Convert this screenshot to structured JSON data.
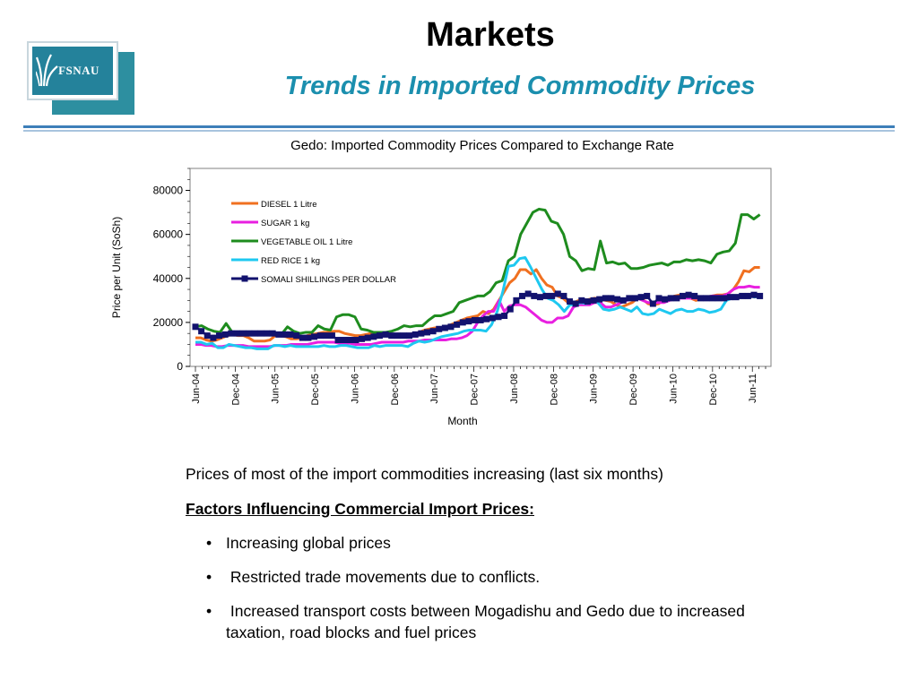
{
  "logo": {
    "text": "FSNAU"
  },
  "header": {
    "title": "Markets",
    "subtitle": "Trends in Imported Commodity Prices"
  },
  "chart_data": {
    "type": "line",
    "title": "Gedo: Imported Commodity Prices Compared to Exchange Rate",
    "xlabel": "Month",
    "ylabel": "Price per Unit (SoSh)",
    "ylim": [
      0,
      90000
    ],
    "yticks": [
      0,
      20000,
      40000,
      60000,
      80000
    ],
    "x_start": "Jun-04",
    "x_labels": [
      "Jun-04",
      "Dec-04",
      "Jun-05",
      "Dec-05",
      "Jun-06",
      "Dec-06",
      "Jun-07",
      "Dec-07",
      "Jun-08",
      "Dec-08",
      "Jun-09",
      "Dec-09",
      "Jun-10",
      "Dec-10",
      "Jun-11"
    ],
    "legend_position": "upper-left",
    "grid": false,
    "series": [
      {
        "name": "DIESEL 1 Litre",
        "color": "#f07020",
        "marker": "none",
        "values": [
          13000,
          13000,
          12000,
          11500,
          12000,
          13000,
          14000,
          14500,
          14000,
          14000,
          13000,
          11500,
          11500,
          11500,
          12000,
          14000,
          14000,
          13500,
          12500,
          12500,
          13000,
          14000,
          14500,
          15000,
          15500,
          15500,
          16000,
          16000,
          15000,
          14500,
          14000,
          14000,
          14500,
          15000,
          15000,
          14000,
          14000,
          13500,
          13500,
          14000,
          14500,
          15000,
          15500,
          16500,
          17000,
          17500,
          17500,
          18000,
          19000,
          20000,
          21000,
          22000,
          22500,
          23000,
          25000,
          24000,
          26000,
          30000,
          34000,
          38000,
          40000,
          44000,
          44000,
          42000,
          44000,
          40000,
          37000,
          36000,
          32000,
          31000,
          29000,
          29000,
          30000,
          30000,
          30500,
          31000,
          30500,
          30000,
          29500,
          28000,
          27000,
          28000,
          29000,
          31000,
          30500,
          28500,
          28000,
          28500,
          30500,
          31000,
          32000,
          32500,
          31500,
          31000,
          30000,
          31000,
          31500,
          32000,
          32500,
          32500,
          33000,
          35000,
          38500,
          43500,
          43000,
          45000,
          45000
        ]
      },
      {
        "name": "SUGAR 1 kg",
        "color": "#e81fe0",
        "marker": "none",
        "values": [
          10000,
          10000,
          9500,
          9500,
          9000,
          9000,
          9500,
          9500,
          9500,
          9500,
          9000,
          9000,
          9000,
          9000,
          9000,
          9500,
          9500,
          9500,
          10000,
          10000,
          10000,
          10000,
          10500,
          11000,
          11000,
          11000,
          11000,
          10500,
          10500,
          10500,
          10000,
          10000,
          10000,
          10000,
          10500,
          11000,
          11000,
          11000,
          11000,
          11000,
          11500,
          11500,
          11500,
          12000,
          12000,
          12000,
          12000,
          12000,
          12500,
          12500,
          13000,
          14000,
          16000,
          20000,
          23000,
          25000,
          25000,
          30000,
          25000,
          27500,
          28000,
          28000,
          27000,
          25000,
          23000,
          21000,
          20000,
          20000,
          22000,
          22000,
          23000,
          27000,
          28000,
          28000,
          28000,
          29000,
          29000,
          27000,
          27000,
          28000,
          29000,
          30000,
          31000,
          31000,
          30000,
          29000,
          29000,
          29000,
          29000,
          30000,
          30500,
          31000,
          31000,
          31000,
          31000,
          31000,
          31500,
          32000,
          32000,
          32000,
          33000,
          35000,
          36000,
          36000,
          36500,
          36000,
          36000
        ]
      },
      {
        "name": "VEGETABLE OIL 1 Litre",
        "color": "#1e8c1e",
        "marker": "none",
        "values": [
          18000,
          18500,
          17000,
          16000,
          15500,
          19500,
          15500,
          15000,
          15500,
          14500,
          15000,
          15500,
          15000,
          15000,
          14500,
          18000,
          16000,
          15000,
          15500,
          15500,
          18500,
          17000,
          16500,
          22500,
          23500,
          23500,
          22500,
          17000,
          16500,
          15500,
          15500,
          15500,
          16000,
          17000,
          18500,
          18000,
          18500,
          18500,
          21000,
          23000,
          23000,
          24000,
          25000,
          29000,
          30000,
          31000,
          32000,
          32000,
          34000,
          38000,
          39000,
          48000,
          50000,
          60000,
          65000,
          70000,
          71500,
          71000,
          66000,
          65000,
          60000,
          50000,
          48000,
          43500,
          44500,
          44000,
          57000,
          47000,
          47500,
          46500,
          47000,
          44500,
          44500,
          45000,
          46000,
          46500,
          47000,
          46000,
          47500,
          47500,
          48500,
          48000,
          48500,
          48000,
          47000,
          51000,
          52000,
          52500,
          56000,
          69000,
          69000,
          67000,
          69000
        ]
      },
      {
        "name": "RED RICE 1 kg",
        "color": "#1ec8f0",
        "marker": "none",
        "values": [
          11000,
          11000,
          10000,
          10500,
          8500,
          8500,
          10000,
          9500,
          9000,
          8500,
          8500,
          8000,
          8000,
          8000,
          9500,
          9500,
          9000,
          9500,
          9000,
          9000,
          9000,
          9000,
          9000,
          9500,
          9000,
          9000,
          9500,
          9500,
          9000,
          8500,
          8500,
          8500,
          9500,
          9000,
          9500,
          9500,
          9500,
          9500,
          9000,
          10500,
          11500,
          11000,
          11500,
          12500,
          13500,
          14000,
          14500,
          15000,
          16000,
          16500,
          16500,
          16500,
          16000,
          19000,
          25000,
          34000,
          45500,
          46000,
          49000,
          49500,
          45000,
          40000,
          35000,
          31000,
          30000,
          28000,
          25000,
          28000,
          28000,
          29000,
          28500,
          30000,
          29000,
          26000,
          25500,
          26000,
          27000,
          26000,
          25000,
          27000,
          24000,
          23500,
          24000,
          26000,
          25000,
          24000,
          25500,
          26000,
          25000,
          25000,
          26000,
          25500,
          24500,
          25000,
          26000,
          30000,
          31000,
          31500,
          32000,
          32500,
          31500,
          32000
        ]
      },
      {
        "name": "SOMALI SHILLINGS PER DOLLAR",
        "color": "#12126e",
        "marker": "square",
        "values": [
          18000,
          16000,
          14000,
          13000,
          14000,
          14500,
          15000,
          15000,
          15000,
          15000,
          15000,
          15000,
          15000,
          15000,
          14500,
          14500,
          14500,
          14000,
          13000,
          13000,
          13500,
          14000,
          14000,
          14000,
          12000,
          12000,
          12000,
          12000,
          12500,
          13000,
          13500,
          14000,
          14500,
          14000,
          14000,
          14000,
          14000,
          14500,
          15000,
          15500,
          16000,
          17000,
          17500,
          18000,
          19000,
          20000,
          20500,
          21000,
          21000,
          21500,
          22000,
          22500,
          23000,
          26000,
          30000,
          32000,
          33000,
          32000,
          31500,
          32000,
          32000,
          33000,
          32000,
          29500,
          28500,
          30000,
          29500,
          30000,
          30500,
          31000,
          31000,
          30500,
          30000,
          31000,
          31000,
          31500,
          32000,
          28500,
          31000,
          30500,
          31000,
          31000,
          32000,
          32500,
          32000,
          31000,
          31000,
          31000,
          31000,
          31000,
          31500,
          31500,
          32000,
          32000,
          32500,
          32000
        ]
      }
    ]
  },
  "content": {
    "intro": "Prices of most of the import commodities increasing (last six months)",
    "factors_heading": "Factors Influencing Commercial Import Prices:",
    "bullets": [
      "Increasing global prices",
      " Restricted trade movements due to conflicts.",
      " Increased transport costs between Mogadishu and Gedo due to increased taxation, road blocks and fuel prices"
    ]
  }
}
